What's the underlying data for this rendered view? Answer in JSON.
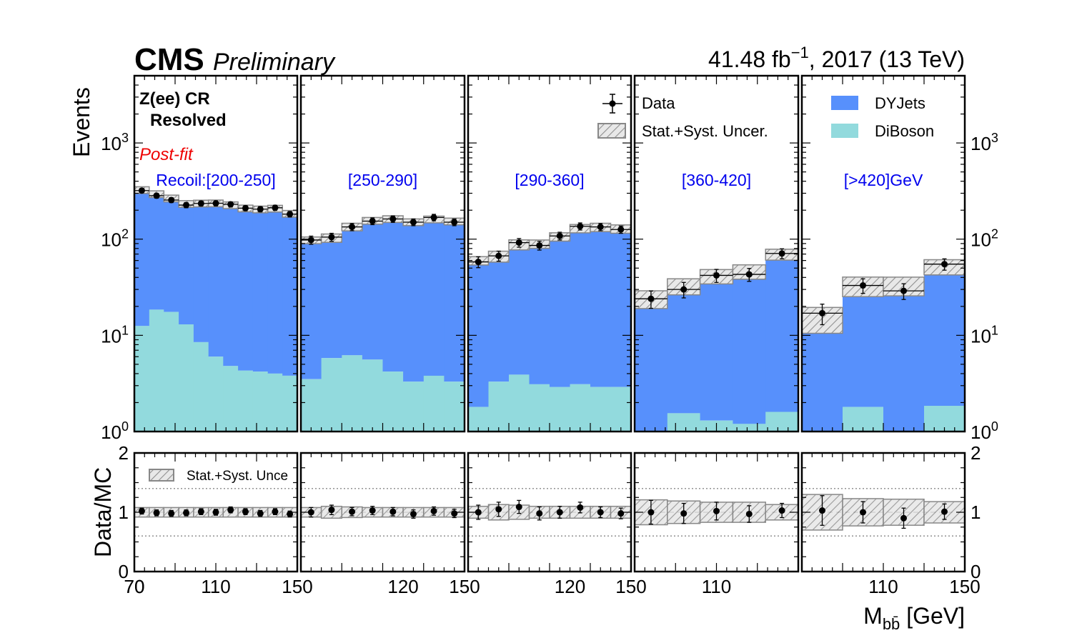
{
  "header": {
    "experiment": "CMS",
    "status": "Preliminary",
    "lumi_lead": "41.48 fb",
    "lumi_exp": "−1",
    "lumi_tail": ", 2017 (13 TeV)"
  },
  "region": {
    "line1": "Z(ee) CR",
    "line2": "Resolved",
    "fit_label": "Post-fit"
  },
  "colors": {
    "dyjets": "#5790fc",
    "diboson": "#92dadd",
    "category_label": "#0000ee",
    "fit_label": "#ee0000",
    "uncertainty_edge": "#888888"
  },
  "legend": {
    "data": "Data",
    "uncertainty": "Stat.+Syst. Uncer.",
    "dyjets": "DYJets",
    "diboson": "DiBoson",
    "ratio_uncertainty": "Stat.+Syst. Unce"
  },
  "chart_data": {
    "type": "bar",
    "subtype": "stacked-histogram-with-data-and-ratio",
    "y_label": "Events",
    "y_scale": "log",
    "y_lim": [
      1,
      5000
    ],
    "y_ticks": [
      {
        "value": 1,
        "base": "10",
        "exp": "0"
      },
      {
        "value": 10,
        "base": "10",
        "exp": "1"
      },
      {
        "value": 100,
        "base": "10",
        "exp": "2"
      },
      {
        "value": 1000,
        "base": "10",
        "exp": "3"
      }
    ],
    "ratio_label": "Data/MC",
    "ratio_lim": [
      0,
      2
    ],
    "ratio_ticks": [
      "0",
      "1",
      "2"
    ],
    "ratio_reference_lines": [
      0.6,
      1.0,
      1.4
    ],
    "x_label_main": "M",
    "x_label_sub": "bb̄",
    "x_label_unit": " [GeV]",
    "x_range": [
      70,
      150
    ],
    "stack_order": [
      "DiBoson",
      "DYJets"
    ],
    "panels": [
      {
        "category": "Recoil:[200-250]",
        "x_tick_labels": [
          {
            "x": 70,
            "label": "70"
          },
          {
            "x": 110,
            "label": "110"
          },
          {
            "x": 150,
            "label": "150"
          }
        ],
        "bin_edges": [
          70,
          77.3,
          84.5,
          91.8,
          99.1,
          106.4,
          113.6,
          120.9,
          128.2,
          135.5,
          142.7,
          150
        ],
        "dyjets": [
          312,
          276,
          248,
          220,
          227,
          230,
          221,
          205,
          200,
          204,
          180
        ],
        "diboson": [
          12.5,
          18.5,
          17.5,
          13.0,
          8.5,
          6.0,
          4.8,
          4.3,
          4.2,
          4.0,
          3.8
        ],
        "data": [
          320,
          283,
          255,
          226,
          235,
          236,
          230,
          210,
          205,
          212,
          182
        ],
        "data_err": [
          17,
          16,
          15,
          14,
          14,
          14,
          14,
          13,
          13,
          13,
          12
        ],
        "unc_rel": [
          0.08,
          0.08,
          0.08,
          0.08,
          0.08,
          0.08,
          0.08,
          0.08,
          0.08,
          0.08,
          0.08
        ],
        "ratio": [
          1.02,
          0.99,
          0.98,
          0.99,
          1.01,
          1.0,
          1.04,
          1.01,
          0.98,
          1.01,
          0.97
        ],
        "ratio_err": [
          0.05,
          0.05,
          0.05,
          0.05,
          0.05,
          0.05,
          0.05,
          0.05,
          0.05,
          0.05,
          0.05
        ]
      },
      {
        "category": "[250-290]",
        "x_tick_labels": [
          {
            "x": 120,
            "label": "120"
          },
          {
            "x": 150,
            "label": "150"
          }
        ],
        "bin_edges": [
          70,
          80,
          90,
          100,
          110,
          120,
          130,
          140,
          150
        ],
        "dyjets": [
          94,
          97,
          128,
          150,
          158,
          147,
          157,
          150
        ],
        "diboson": [
          3.5,
          5.8,
          6.2,
          5.6,
          4.2,
          3.3,
          3.8,
          3.3
        ],
        "data": [
          98,
          105,
          134,
          154,
          162,
          150,
          168,
          150
        ],
        "data_err": [
          9.5,
          10,
          11.5,
          12.5,
          12.5,
          12,
          13,
          12
        ],
        "unc_rel": [
          0.08,
          0.1,
          0.09,
          0.08,
          0.08,
          0.08,
          0.08,
          0.08
        ],
        "ratio": [
          1.0,
          1.04,
          1.01,
          1.03,
          1.01,
          0.97,
          1.02,
          0.98
        ],
        "ratio_err": [
          0.08,
          0.08,
          0.07,
          0.07,
          0.07,
          0.07,
          0.07,
          0.07
        ]
      },
      {
        "category": "[290-360]",
        "x_tick_labels": [
          {
            "x": 120,
            "label": "120"
          },
          {
            "x": 150,
            "label": "150"
          }
        ],
        "bin_edges": [
          70,
          80,
          90,
          100,
          110,
          120,
          130,
          140,
          150
        ],
        "dyjets": [
          58,
          63,
          84,
          86,
          103,
          126,
          130,
          125
        ],
        "diboson": [
          1.8,
          3.3,
          3.9,
          3.1,
          2.9,
          3.1,
          2.9,
          2.9
        ],
        "data": [
          58,
          67,
          92,
          86,
          108,
          136,
          134,
          126
        ],
        "data_err": [
          7.5,
          8,
          9.5,
          9,
          10,
          11.5,
          11.5,
          11
        ],
        "unc_rel": [
          0.1,
          0.13,
          0.12,
          0.1,
          0.1,
          0.1,
          0.1,
          0.1
        ],
        "ratio": [
          1.0,
          1.05,
          1.09,
          0.98,
          1.0,
          1.08,
          1.0,
          0.98
        ],
        "ratio_err": [
          0.12,
          0.12,
          0.11,
          0.11,
          0.1,
          0.09,
          0.09,
          0.09
        ]
      },
      {
        "category": "[360-420]",
        "x_tick_labels": [
          {
            "x": 110,
            "label": "110"
          }
        ],
        "bin_edges": [
          70,
          86,
          102,
          118,
          134,
          150
        ],
        "dyjets": [
          23,
          31,
          40,
          45,
          68
        ],
        "diboson": [
          1.0,
          1.55,
          1.3,
          1.2,
          1.6
        ],
        "data": [
          24,
          30,
          42,
          43,
          71
        ],
        "data_err": [
          4.9,
          5.5,
          6.5,
          6.6,
          8.4
        ],
        "unc_rel": [
          0.21,
          0.19,
          0.17,
          0.17,
          0.13
        ],
        "ratio": [
          1.0,
          0.98,
          1.02,
          0.97,
          1.03
        ],
        "ratio_err": [
          0.2,
          0.17,
          0.15,
          0.14,
          0.12
        ]
      },
      {
        "category": "[>420]GeV",
        "x_tick_labels": [
          {
            "x": 110,
            "label": "110"
          },
          {
            "x": 150,
            "label": "150"
          }
        ],
        "bin_edges": [
          70,
          90,
          110,
          130,
          150
        ],
        "dyjets": [
          14,
          31,
          32,
          50
        ],
        "diboson": [
          1.0,
          1.8,
          1.0,
          1.85
        ],
        "data": [
          17,
          33,
          29,
          55
        ],
        "data_err": [
          4.1,
          5.7,
          5.4,
          7.4
        ],
        "unc_rel": [
          0.3,
          0.23,
          0.22,
          0.18
        ],
        "ratio": [
          1.03,
          1.0,
          0.9,
          1.01
        ],
        "ratio_err": [
          0.25,
          0.18,
          0.17,
          0.13
        ]
      }
    ]
  }
}
